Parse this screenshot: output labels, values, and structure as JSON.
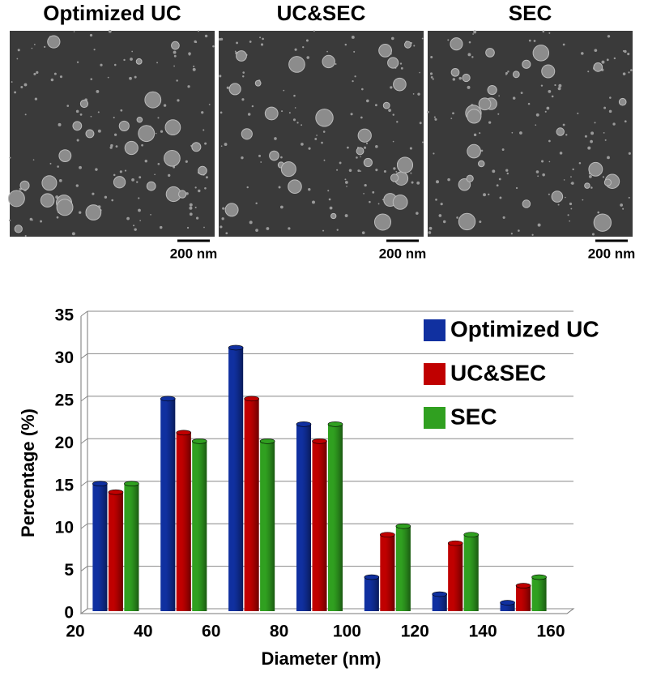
{
  "panels": {
    "titles": [
      "Optimized UC",
      "UC&SEC",
      "SEC"
    ],
    "scale_labels": [
      "200 nm",
      "200 nm",
      "200 nm"
    ]
  },
  "chart_data": {
    "type": "bar",
    "x": [
      30,
      50,
      70,
      90,
      110,
      130,
      150
    ],
    "xlabel": "Diameter (nm)",
    "ylabel": "Percentage (%)",
    "xlim": [
      20,
      160
    ],
    "xticks": [
      20,
      40,
      60,
      80,
      100,
      120,
      140,
      160
    ],
    "ylim": [
      0,
      35
    ],
    "yticks": [
      0,
      5,
      10,
      15,
      20,
      25,
      30,
      35
    ],
    "grid": true,
    "legend": "upper right",
    "series": [
      {
        "name": "Optimized UC",
        "color": "#1030a0",
        "values": [
          15,
          25,
          31,
          22,
          4,
          2,
          1
        ]
      },
      {
        "name": "UC&SEC",
        "color": "#c00000",
        "values": [
          14,
          21,
          25,
          20,
          9,
          8,
          3
        ]
      },
      {
        "name": "SEC",
        "color": "#30a020",
        "values": [
          15,
          20,
          20,
          22,
          10,
          9,
          4
        ]
      }
    ]
  }
}
